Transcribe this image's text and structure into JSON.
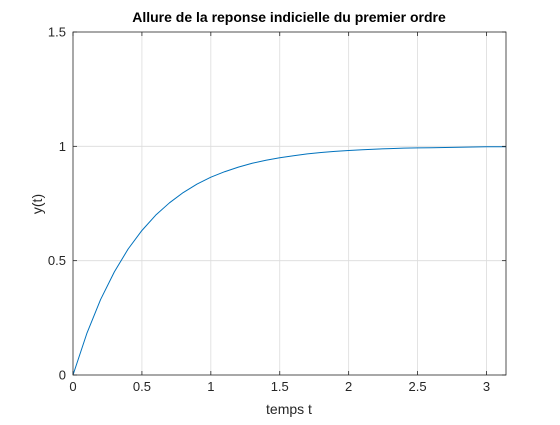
{
  "chart_data": {
    "type": "line",
    "title": "Allure de la reponse indicielle du premier ordre",
    "xlabel": "temps t",
    "ylabel": "y(t)",
    "xlim": [
      0,
      3.1416
    ],
    "ylim": [
      0,
      1.5
    ],
    "xticks": [
      0,
      0.5,
      1,
      1.5,
      2,
      2.5,
      3
    ],
    "yticks": [
      0,
      0.5,
      1,
      1.5
    ],
    "xtick_labels": [
      "0",
      "0.5",
      "1",
      "1.5",
      "2",
      "2.5",
      "3"
    ],
    "ytick_labels": [
      "0",
      "0.5",
      "1",
      "1.5"
    ],
    "grid": true,
    "series": [
      {
        "color": "#0072bd",
        "x": [
          0,
          0.1,
          0.2,
          0.3,
          0.4,
          0.5,
          0.6,
          0.7,
          0.8,
          0.9,
          1.0,
          1.1,
          1.2,
          1.3,
          1.4,
          1.5,
          1.6,
          1.7,
          1.8,
          1.9,
          2.0,
          2.1,
          2.2,
          2.3,
          2.4,
          2.5,
          2.6,
          2.7,
          2.8,
          2.9,
          3.0,
          3.1416
        ],
        "y": [
          0,
          0.181,
          0.33,
          0.451,
          0.551,
          0.632,
          0.699,
          0.753,
          0.798,
          0.835,
          0.865,
          0.889,
          0.909,
          0.926,
          0.939,
          0.95,
          0.959,
          0.967,
          0.973,
          0.978,
          0.982,
          0.985,
          0.988,
          0.99,
          0.992,
          0.993,
          0.994,
          0.995,
          0.996,
          0.997,
          0.998,
          0.998
        ]
      }
    ]
  },
  "colors": {
    "axis": "#262626",
    "grid": "#dcdcdc",
    "line": "#0072bd"
  }
}
